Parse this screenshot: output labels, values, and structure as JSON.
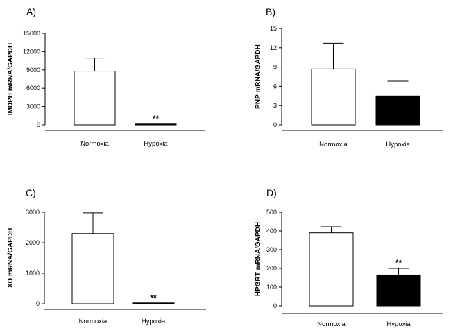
{
  "chart_data": [
    {
      "type": "bar",
      "panel_label": "A)",
      "ylabel": "IMDPH mRNA/GAPDH",
      "categories": [
        "Normoxia",
        "Hypoxia"
      ],
      "values": [
        8800,
        120
      ],
      "errors": [
        2150,
        0
      ],
      "fills": [
        "#ffffff",
        "#000000"
      ],
      "significance": [
        "",
        "**"
      ],
      "ylim": [
        0,
        15000
      ],
      "yticks": [
        0,
        3000,
        6000,
        9000,
        12000,
        15000
      ],
      "ytick_labels": [
        "0",
        "3000",
        "6000",
        "9000",
        "12000",
        "15000"
      ]
    },
    {
      "type": "bar",
      "panel_label": "B)",
      "ylabel": "PNP mRNA/GAPDH",
      "categories": [
        "Normoxia",
        "Hypoxia"
      ],
      "values": [
        8.7,
        4.5
      ],
      "errors": [
        4.0,
        2.3
      ],
      "fills": [
        "#ffffff",
        "#000000"
      ],
      "significance": [
        "",
        ""
      ],
      "ylim": [
        0,
        15
      ],
      "yticks": [
        0,
        3,
        6,
        9,
        12,
        15
      ],
      "ytick_labels": [
        "0",
        "3",
        "6",
        "9",
        "12",
        "15"
      ]
    },
    {
      "type": "bar",
      "panel_label": "C)",
      "ylabel": "XO mRNA/GAPDH",
      "categories": [
        "Normoxia",
        "Hypoxia"
      ],
      "values": [
        2300,
        15
      ],
      "errors": [
        680,
        0
      ],
      "fills": [
        "#ffffff",
        "#000000"
      ],
      "significance": [
        "",
        "**"
      ],
      "ylim": [
        0,
        3000
      ],
      "yticks": [
        0,
        1000,
        2000,
        3000
      ],
      "ytick_labels": [
        "0",
        "1000",
        "2000",
        "3000"
      ]
    },
    {
      "type": "bar",
      "panel_label": "D)",
      "ylabel": "HPGRT mRNA/GAPDH",
      "categories": [
        "Normoxia",
        "Hypoxia"
      ],
      "values": [
        390,
        165
      ],
      "errors": [
        32,
        35
      ],
      "fills": [
        "#ffffff",
        "#000000"
      ],
      "significance": [
        "",
        "**"
      ],
      "ylim": [
        0,
        500
      ],
      "yticks": [
        0,
        100,
        200,
        300,
        400,
        500
      ],
      "ytick_labels": [
        "0",
        "100",
        "200",
        "300",
        "400",
        "500"
      ]
    }
  ]
}
